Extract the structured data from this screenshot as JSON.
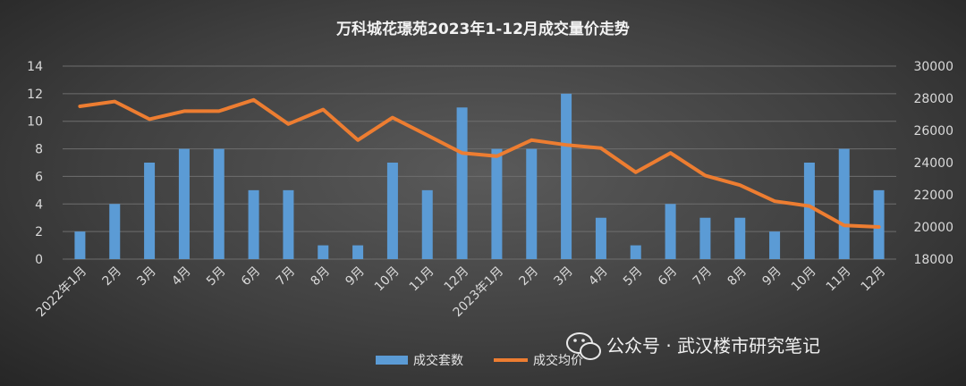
{
  "chart_data": {
    "type": "bar+line",
    "title": "万科城花璟苑2023年1-12月成交量价走势",
    "categories": [
      "2022年1月",
      "2月",
      "3月",
      "4月",
      "5月",
      "6月",
      "7月",
      "8月",
      "9月",
      "10月",
      "11月",
      "12月",
      "2023年1月",
      "2月",
      "3月",
      "4月",
      "5月",
      "6月",
      "7月",
      "8月",
      "9月",
      "10月",
      "11月",
      "12月"
    ],
    "series": [
      {
        "name": "成交套数",
        "type": "bar",
        "axis": "left",
        "color": "#5b9bd5",
        "values": [
          2,
          4,
          7,
          8,
          8,
          5,
          5,
          1,
          1,
          7,
          5,
          11,
          8,
          8,
          12,
          3,
          1,
          4,
          3,
          3,
          2,
          7,
          8,
          5
        ]
      },
      {
        "name": "成交均价",
        "type": "line",
        "axis": "right",
        "color": "#ed7d31",
        "values": [
          27500,
          27800,
          26700,
          27200,
          27200,
          27900,
          26400,
          27300,
          25400,
          26800,
          25700,
          24600,
          24400,
          25400,
          25100,
          24900,
          23400,
          24600,
          23200,
          22600,
          21600,
          21300,
          20100,
          20000
        ]
      }
    ],
    "y_left": {
      "min": 0,
      "max": 14,
      "ticks": [
        "0",
        "2",
        "4",
        "6",
        "8",
        "10",
        "12",
        "14"
      ]
    },
    "y_right": {
      "min": 18000,
      "max": 30000,
      "ticks": [
        "18000",
        "20000",
        "22000",
        "24000",
        "26000",
        "28000",
        "30000"
      ]
    },
    "legend": {
      "position": "bottom",
      "items": [
        "成交套数",
        "成交均价"
      ]
    },
    "grid": true
  },
  "watermark": {
    "text": "公众号 · 武汉楼市研究笔记",
    "icon": "wechat-icon"
  }
}
